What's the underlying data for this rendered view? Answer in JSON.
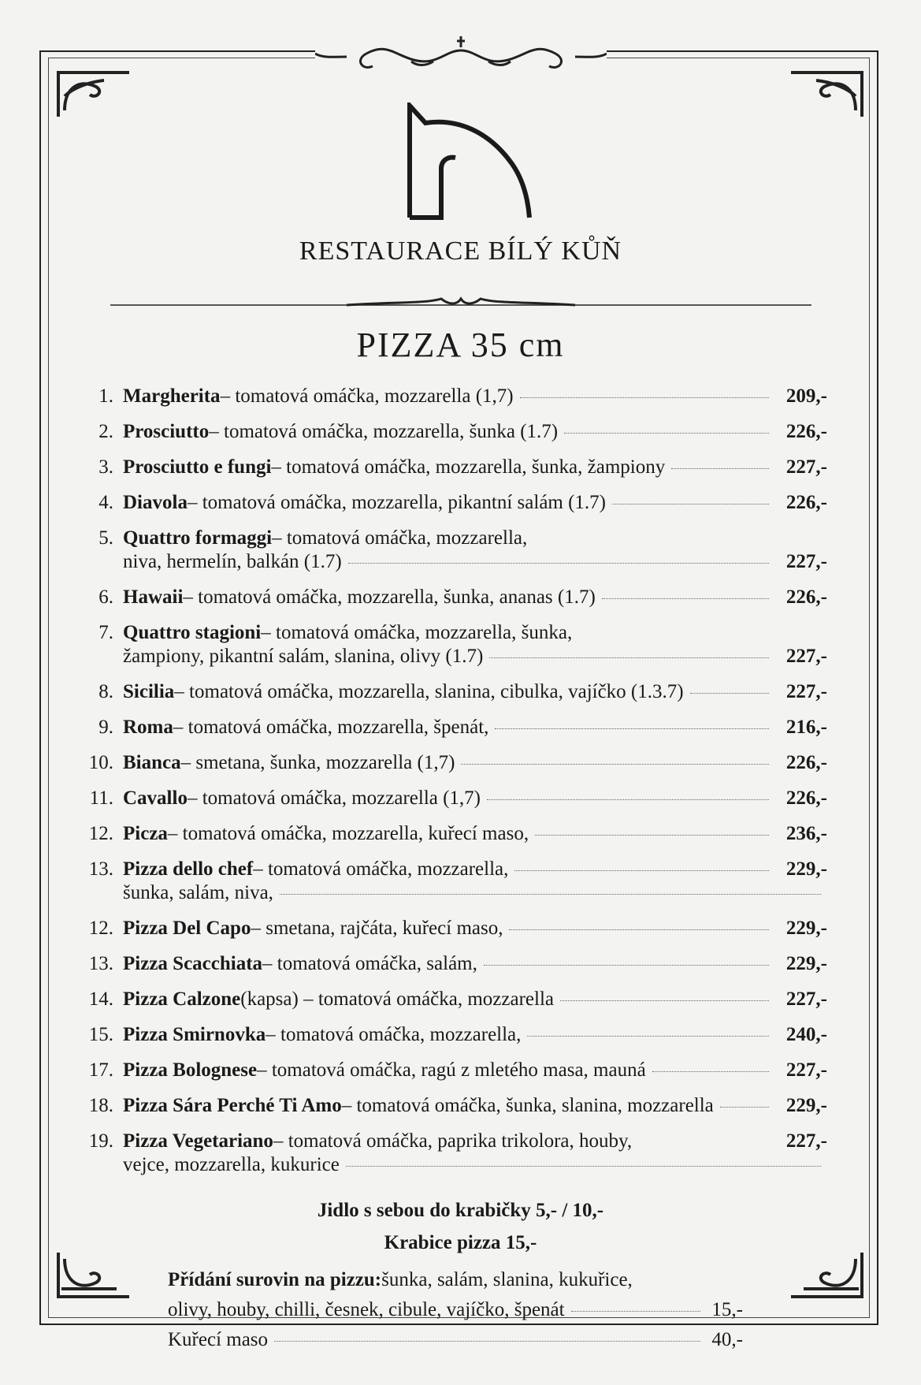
{
  "restaurant_name": "RESTAURACE BÍLÝ KŮŇ",
  "section_title": "PIZZA 35 cm",
  "items": [
    {
      "num": "1.",
      "name": "Margherita",
      "desc": " – tomatová omáčka, mozzarella (1,7)",
      "cont": "",
      "price": "209,-",
      "price_first_line": true
    },
    {
      "num": "2.",
      "name": "Prosciutto",
      "desc": " – tomatová omáčka, mozzarella, šunka (1.7)",
      "cont": "",
      "price": "226,-",
      "price_first_line": true
    },
    {
      "num": "3.",
      "name": "Prosciutto e fungi",
      "desc": " – tomatová omáčka, mozzarella, šunka, žampiony",
      "cont": "",
      "price": "227,-",
      "price_first_line": true
    },
    {
      "num": "4.",
      "name": "Diavola",
      "desc": " – tomatová omáčka, mozzarella, pikantní salám (1.7)",
      "cont": "",
      "price": "226,-",
      "price_first_line": true
    },
    {
      "num": "5.",
      "name": "Quattro formaggi",
      "desc": " – tomatová omáčka, mozzarella,",
      "cont": "niva, hermelín, balkán (1.7)",
      "price": "227,-",
      "price_first_line": false
    },
    {
      "num": "6.",
      "name": "Hawaii",
      "desc": " – tomatová omáčka, mozzarella, šunka, ananas (1.7)",
      "cont": "",
      "price": "226,-",
      "price_first_line": true
    },
    {
      "num": "7.",
      "name": "Quattro stagioni",
      "desc": " – tomatová omáčka, mozzarella, šunka,",
      "cont": "žampiony, pikantní salám, slanina, olivy (1.7)",
      "price": "227,-",
      "price_first_line": false
    },
    {
      "num": "8.",
      "name": "Sicilia",
      "desc": " – tomatová omáčka, mozzarella, slanina, cibulka, vajíčko (1.3.7)",
      "cont": "",
      "price": "227,-",
      "price_first_line": true
    },
    {
      "num": "9.",
      "name": "Roma",
      "desc": " – tomatová omáčka, mozzarella, špenát,",
      "cont": "",
      "price": "216,-",
      "price_first_line": true
    },
    {
      "num": "10.",
      "name": "Bianca",
      "desc": " – smetana, šunka, mozzarella (1,7)",
      "cont": "",
      "price": "226,-",
      "price_first_line": true
    },
    {
      "num": "11.",
      "name": "Cavallo",
      "desc": " – tomatová omáčka, mozzarella (1,7)",
      "cont": "",
      "price": "226,-",
      "price_first_line": true
    },
    {
      "num": "12.",
      "name": "Picza",
      "desc": " – tomatová omáčka, mozzarella, kuřecí maso,",
      "cont": "",
      "price": "236,-",
      "price_first_line": true
    },
    {
      "num": "13.",
      "name": "Pizza dello chef",
      "desc": " – tomatová omáčka, mozzarella,",
      "cont": "šunka, salám, niva,",
      "price": "229,-",
      "price_first_line": true
    },
    {
      "num": "12.",
      "name": "Pizza Del Capo",
      "desc": " – smetana, rajčáta, kuřecí maso,",
      "cont": "",
      "price": "229,-",
      "price_first_line": true
    },
    {
      "num": "13.",
      "name": "Pizza Scacchiata",
      "desc": " – tomatová omáčka, salám,",
      "cont": "",
      "price": "229,-",
      "price_first_line": true
    },
    {
      "num": "14.",
      "name": "Pizza Calzone",
      "desc": " (kapsa) – tomatová omáčka, mozzarella",
      "cont": "",
      "price": "227,-",
      "price_first_line": true
    },
    {
      "num": "15.",
      "name": "Pizza Smirnovka",
      "desc": " – tomatová omáčka, mozzarella,",
      "cont": "",
      "price": "240,-",
      "price_first_line": true
    },
    {
      "num": "17.",
      "name": "Pizza Bolognese",
      "desc": " – tomatová omáčka, ragú z mletého masa, mauná",
      "cont": "",
      "price": "227,-",
      "price_first_line": true
    },
    {
      "num": "18.",
      "name": "Pizza Sára Perché Ti Amo",
      "desc": " – tomatová omáčka, šunka, slanina, mozzarella",
      "cont": "",
      "price": "229,-",
      "price_first_line": true
    },
    {
      "num": "19.",
      "name": "Pizza Vegetariano",
      "desc": " – tomatová omáčka, paprika trikolora, houby,",
      "cont": "vejce, mozzarella, kukurice",
      "price": "227,-",
      "price_first_line": true,
      "no_dots_first_line": true
    }
  ],
  "takeaway_note": "Jidlo s sebou do krabičky 5,- / 10,-",
  "box_note": "Krabice pizza 15,-",
  "extras": {
    "label": "Přídání surovin na pizzu:",
    "line1": " šunka, salám, slanina, kukuřice,",
    "line2": "olivy, houby, chilli, česnek, cibule, vajíčko, špenát",
    "line2_price": "15,-",
    "line3": "Kuřecí maso",
    "line3_price": "40,-"
  },
  "icons": {
    "logo": "horse-head-logo",
    "ornament": "flourish-ornament"
  }
}
